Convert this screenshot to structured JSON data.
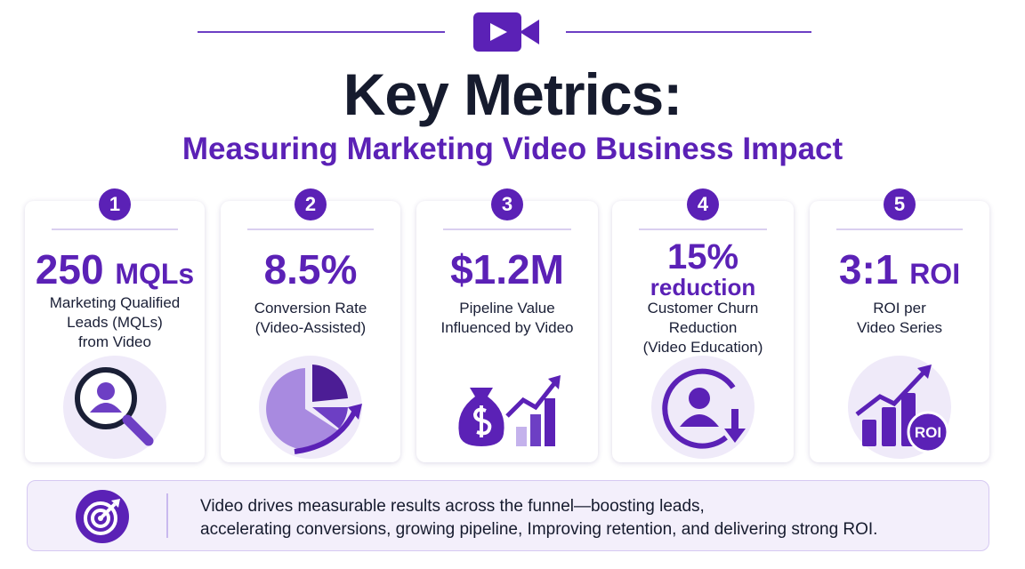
{
  "header": {
    "title": "Key Metrics:",
    "subtitle": "Measuring Marketing Video Business Impact"
  },
  "cards": [
    {
      "number": "1",
      "metric": "250",
      "metric_unit": "MQLs",
      "description": [
        "Marketing Qualified",
        "Leads (MQLs)",
        "from Video"
      ]
    },
    {
      "number": "2",
      "metric": "8.5%",
      "description": [
        "Conversion Rate",
        "(Video-Assisted)"
      ]
    },
    {
      "number": "3",
      "metric": "$1.2M",
      "description": [
        "Pipeline Value",
        "Influenced by Video"
      ]
    },
    {
      "number": "4",
      "metric": "15%",
      "metric_unit": "reduction",
      "description": [
        "Customer Churn",
        "Reduction",
        "(Video Education)"
      ]
    },
    {
      "number": "5",
      "metric": "3:1",
      "metric_unit": "ROI",
      "description": [
        "ROI per",
        "Video Series"
      ],
      "icon_label": "ROI"
    }
  ],
  "footer": {
    "lines": [
      "Video drives measurable results across the funnel—boosting leads,",
      "accelerating conversions, growing pipeline, Improving retention, and delivering strong ROI."
    ]
  }
}
